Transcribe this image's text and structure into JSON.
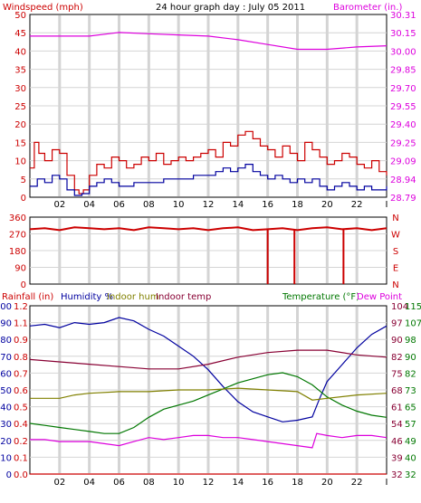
{
  "top": {
    "left_title": "Windspeed (mph)",
    "center_title": "24 hour graph day : July 05 2011",
    "right_title": "Barometer (in.)",
    "left_ticks": [
      "0",
      "5",
      "10",
      "15",
      "20",
      "25",
      "30",
      "35",
      "40",
      "45",
      "50"
    ],
    "right_ticks": [
      "28.79",
      "28.94",
      "29.09",
      "29.25",
      "29.40",
      "29.55",
      "29.70",
      "29.85",
      "30.00",
      "30.15",
      "30.31"
    ],
    "x_ticks": [
      "02",
      "04",
      "06",
      "08",
      "10",
      "12",
      "14",
      "16",
      "18",
      "20",
      "22",
      "I"
    ]
  },
  "mid": {
    "left_ticks": [
      "0",
      "90",
      "180",
      "270",
      "360"
    ],
    "right_ticks": [
      "N",
      "E",
      "S",
      "W",
      "N"
    ]
  },
  "bottom": {
    "legend": {
      "rainfall": "Rainfall (in)",
      "humidity": "Humidity %",
      "indoor_hum": "Indoor hum",
      "indoor_temp": "Indoor temp",
      "temperature": "Temperature (°F)",
      "dew_point": "Dew Point"
    },
    "rain_ticks": [
      "0.0",
      "0.1",
      "0.2",
      "0.4",
      "0.5",
      "0.6",
      "0.7",
      "0.8",
      "0.9",
      "1.1",
      "1.2"
    ],
    "hum_ticks": [
      "0",
      "10",
      "20",
      "30",
      "40",
      "50",
      "60",
      "70",
      "80",
      "90",
      "100"
    ],
    "rt1_ticks": [
      "32",
      "39",
      "46",
      "54",
      "61",
      "68",
      "75",
      "82",
      "90",
      "97",
      "104"
    ],
    "rt2_ticks": [
      "32",
      "40",
      "49",
      "57",
      "65",
      "73",
      "82",
      "90",
      "98",
      "107",
      "115"
    ]
  },
  "colors": {
    "red": "#cc0000",
    "blue": "#00009f",
    "magenta": "#dd00dd",
    "green": "#007700",
    "maroon": "#880033",
    "olive": "#808000",
    "grid": "#d4d4d4"
  },
  "chart_data": [
    {
      "type": "line",
      "x_unit": "hour",
      "x_range": [
        0,
        24
      ],
      "ylim": [
        0,
        50
      ],
      "y2lim": [
        28.79,
        30.31
      ],
      "series": [
        {
          "axis": "left",
          "color": "#cc0000",
          "x": [
            0,
            0.3,
            0.6,
            1,
            1.5,
            2,
            2.5,
            3,
            3.3,
            3.6,
            4,
            4.5,
            5,
            5.5,
            6,
            6.5,
            7,
            7.5,
            8,
            8.5,
            9,
            9.5,
            10,
            10.5,
            11,
            11.5,
            12,
            12.5,
            13,
            13.5,
            14,
            14.5,
            15,
            15.5,
            16,
            16.5,
            17,
            17.5,
            18,
            18.5,
            19,
            19.5,
            20,
            20.5,
            21,
            21.5,
            22,
            22.5,
            23,
            23.5,
            24
          ],
          "y": [
            8,
            15,
            12,
            10,
            13,
            12,
            6,
            2,
            1,
            2,
            6,
            9,
            8,
            11,
            10,
            8,
            9,
            11,
            10,
            12,
            9,
            10,
            11,
            10,
            11,
            12,
            13,
            11,
            15,
            14,
            17,
            18,
            16,
            14,
            13,
            11,
            14,
            12,
            10,
            15,
            13,
            11,
            9,
            10,
            12,
            11,
            9,
            8,
            10,
            7,
            6
          ]
        },
        {
          "axis": "left",
          "color": "#00009f",
          "x": [
            0,
            0.5,
            1,
            1.5,
            2,
            2.5,
            3,
            3.5,
            4,
            4.5,
            5,
            5.5,
            6,
            7,
            8,
            9,
            10,
            11,
            12,
            12.5,
            13,
            13.5,
            14,
            14.5,
            15,
            15.5,
            16,
            16.5,
            17,
            17.5,
            18,
            18.5,
            19,
            19.5,
            20,
            20.5,
            21,
            21.5,
            22,
            22.5,
            23,
            24
          ],
          "y": [
            3,
            5,
            4,
            6,
            5,
            2,
            0.5,
            1,
            3,
            4,
            5,
            4,
            3,
            4,
            4,
            5,
            5,
            6,
            6,
            7,
            8,
            7,
            8,
            9,
            7,
            6,
            5,
            6,
            5,
            4,
            5,
            4,
            5,
            3,
            2,
            3,
            4,
            3,
            2,
            3,
            2,
            3
          ]
        },
        {
          "axis": "right",
          "color": "#dd00dd",
          "x": [
            0,
            2,
            4,
            6,
            8,
            10,
            12,
            14,
            16,
            18,
            20,
            22,
            24
          ],
          "y": [
            30.13,
            30.13,
            30.13,
            30.16,
            30.15,
            30.14,
            30.13,
            30.1,
            30.06,
            30.02,
            30.02,
            30.04,
            30.05
          ]
        }
      ]
    },
    {
      "type": "scatter",
      "x_unit": "hour",
      "x_range": [
        0,
        24
      ],
      "ylim": [
        0,
        360
      ],
      "series": [
        {
          "name": "wind direction",
          "color": "#cc0000",
          "x": [
            0,
            1,
            2,
            3,
            4,
            5,
            6,
            7,
            8,
            9,
            10,
            11,
            12,
            13,
            14,
            15,
            16,
            17,
            18,
            19,
            20,
            21,
            22,
            23,
            24
          ],
          "y": [
            295,
            300,
            290,
            305,
            300,
            295,
            300,
            290,
            305,
            300,
            295,
            300,
            290,
            300,
            305,
            290,
            295,
            300,
            290,
            300,
            305,
            295,
            300,
            290,
            300
          ]
        },
        {
          "name": "spikes",
          "color": "#cc0000",
          "x": [
            16,
            17.8,
            21.1
          ],
          "y": [
            0,
            0,
            0
          ]
        }
      ]
    },
    {
      "type": "line",
      "x_unit": "hour",
      "x_range": [
        0,
        24
      ],
      "series": [
        {
          "key": "humidity",
          "axis": "humidity",
          "ylim": [
            0,
            100
          ],
          "color": "#00009f",
          "x": [
            0,
            1,
            2,
            3,
            4,
            5,
            6,
            7,
            8,
            9,
            10,
            11,
            12,
            13,
            14,
            15,
            16,
            17,
            18,
            19,
            19.5,
            20,
            21,
            22,
            23,
            24
          ],
          "y": [
            88,
            89,
            87,
            90,
            89,
            90,
            93,
            91,
            86,
            82,
            76,
            70,
            62,
            52,
            43,
            37,
            34,
            31,
            32,
            34,
            45,
            55,
            65,
            75,
            83,
            88
          ]
        },
        {
          "key": "temperature",
          "axis": "rt2",
          "ylim": [
            32,
            115
          ],
          "color": "#007700",
          "x": [
            0,
            1,
            2,
            3,
            4,
            5,
            6,
            7,
            8,
            9,
            10,
            11,
            12,
            13,
            14,
            15,
            16,
            17,
            18,
            19,
            20,
            21,
            22,
            23,
            24
          ],
          "y": [
            57,
            56,
            55,
            54,
            53,
            52,
            52,
            55,
            60,
            64,
            66,
            68,
            71,
            74,
            77,
            79,
            81,
            82,
            80,
            76,
            70,
            66,
            63,
            61,
            60
          ]
        },
        {
          "key": "indoor_temp",
          "axis": "rt1",
          "ylim": [
            32,
            104
          ],
          "color": "#880033",
          "x": [
            0,
            2,
            4,
            6,
            8,
            10,
            12,
            14,
            16,
            18,
            20,
            22,
            24
          ],
          "y": [
            81,
            80,
            79,
            78,
            77,
            77,
            79,
            82,
            84,
            85,
            85,
            83,
            82
          ]
        },
        {
          "key": "indoor_hum",
          "axis": "humidity",
          "ylim": [
            0,
            100
          ],
          "color": "#808000",
          "x": [
            0,
            2,
            3,
            4,
            6,
            8,
            10,
            12,
            14,
            16,
            18,
            19,
            20,
            22,
            24
          ],
          "y": [
            45,
            45,
            47,
            48,
            49,
            49,
            50,
            50,
            51,
            50,
            49,
            44,
            45,
            47,
            48
          ]
        },
        {
          "key": "dew_point",
          "axis": "rt2",
          "ylim": [
            32,
            115
          ],
          "color": "#dd00dd",
          "x": [
            0,
            1,
            2,
            3,
            4,
            5,
            6,
            7,
            8,
            9,
            10,
            11,
            12,
            13,
            14,
            15,
            16,
            17,
            18,
            19,
            19.3,
            20,
            21,
            22,
            23,
            24
          ],
          "y": [
            49,
            49,
            48,
            48,
            48,
            47,
            46,
            48,
            50,
            49,
            50,
            51,
            51,
            50,
            50,
            49,
            48,
            47,
            46,
            45,
            52,
            51,
            50,
            51,
            51,
            50
          ]
        },
        {
          "key": "rainfall",
          "axis": "rain",
          "ylim": [
            0,
            1.2
          ],
          "color": "#cc0000",
          "x": [
            0,
            24
          ],
          "y": [
            0,
            0
          ]
        }
      ]
    }
  ]
}
